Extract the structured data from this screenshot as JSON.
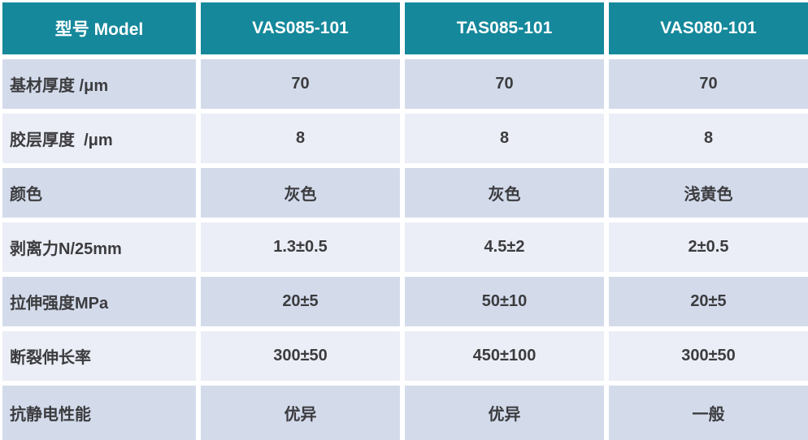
{
  "chart_data": {
    "type": "table",
    "title": "",
    "header": {
      "label_col": "型号 Model",
      "model_cols": [
        "VAS085-101",
        "TAS085-101",
        "VAS080-101"
      ]
    },
    "rows": [
      {
        "label": "基材厚度 /μm",
        "values": [
          "70",
          "70",
          "70"
        ]
      },
      {
        "label": "胶层厚度  /μm",
        "values": [
          "8",
          "8",
          "8"
        ]
      },
      {
        "label": "颜色",
        "values": [
          "灰色",
          "灰色",
          "浅黄色"
        ]
      },
      {
        "label": "剥离力N/25mm",
        "values": [
          "1.3±0.5",
          "4.5±2",
          "2±0.5"
        ]
      },
      {
        "label": "拉伸强度MPa",
        "values": [
          "20±5",
          "50±10",
          "20±5"
        ]
      },
      {
        "label": "断裂伸长率",
        "values": [
          "300±50",
          "450±100",
          "300±50"
        ]
      },
      {
        "label": "抗静电性能",
        "values": [
          "优异",
          "优异",
          "一般"
        ]
      }
    ],
    "layout": {
      "row_shading": [
        "dark",
        "light",
        "dark",
        "light",
        "dark",
        "light",
        "dark"
      ]
    },
    "colors": {
      "header_bg": "#15889b",
      "header_text": "#ffffff",
      "row_dark_bg": "#d3dbeb",
      "row_light_bg": "#ebeef6",
      "text": "#3c3c3f"
    }
  }
}
